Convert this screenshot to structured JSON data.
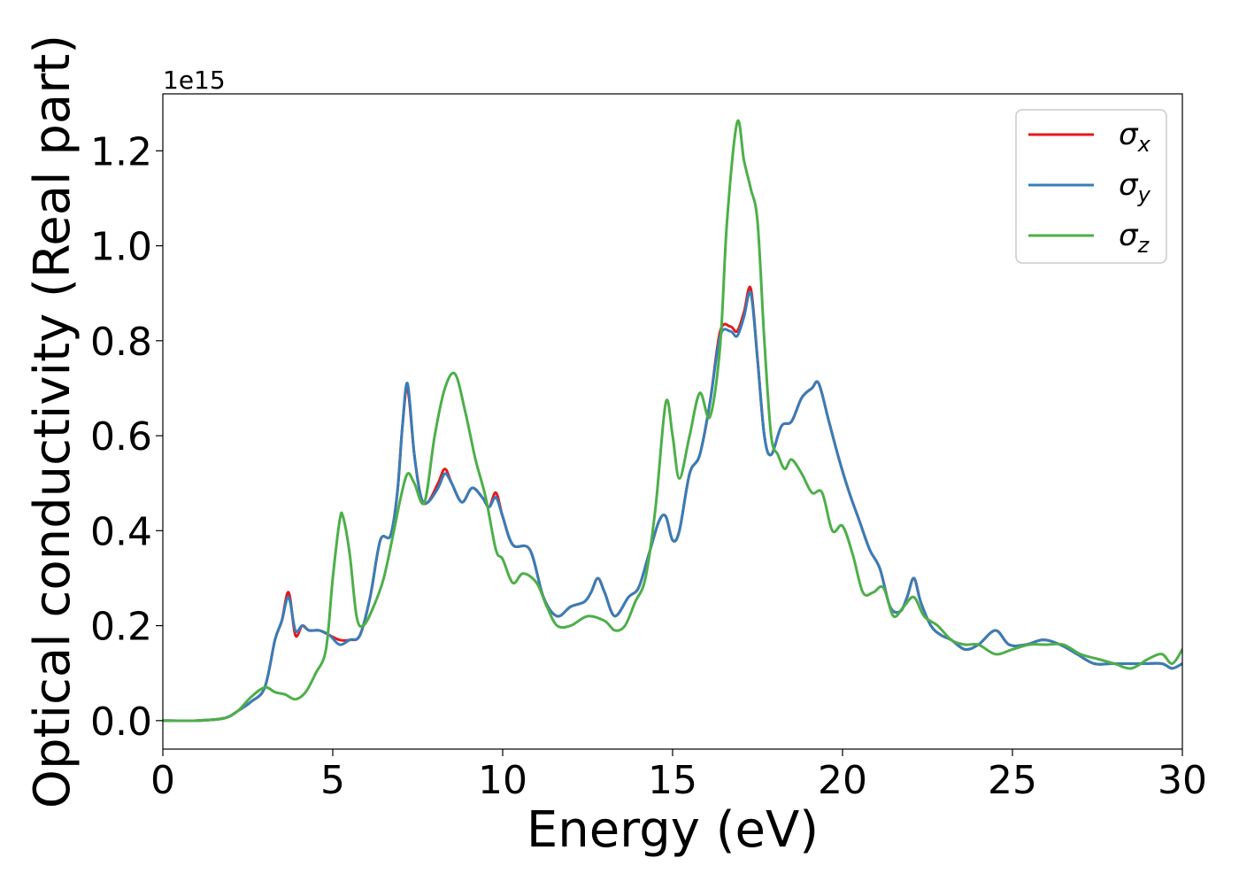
{
  "chart_data": {
    "type": "line",
    "title": "",
    "xlabel": "Energy (eV)",
    "ylabel": "Optical conductivity (Real part)",
    "y_offset_label": "1e15",
    "y_scale_factor": 1000000000000000.0,
    "xlim": [
      0,
      30
    ],
    "ylim": [
      -0.06,
      1.32
    ],
    "grid": false,
    "legend_position": "top-right",
    "x_ticks": [
      0,
      5,
      10,
      15,
      20,
      25,
      30
    ],
    "x_tick_labels": [
      "0",
      "5",
      "10",
      "15",
      "20",
      "25",
      "30"
    ],
    "y_ticks": [
      0.0,
      0.2,
      0.4,
      0.6,
      0.8,
      1.0,
      1.2
    ],
    "y_tick_labels": [
      "0.0",
      "0.2",
      "0.4",
      "0.6",
      "0.8",
      "1.0",
      "1.2"
    ],
    "series": [
      {
        "name": "σx",
        "legend_main": "σ",
        "legend_sub": "x",
        "color": "#e41a1c",
        "x": [
          0,
          1,
          1.8,
          2.2,
          2.6,
          3.0,
          3.3,
          3.5,
          3.7,
          3.9,
          4.1,
          4.3,
          4.6,
          4.9,
          5.2,
          5.5,
          5.8,
          6.1,
          6.4,
          6.7,
          6.9,
          7.05,
          7.2,
          7.4,
          7.6,
          7.8,
          8.1,
          8.3,
          8.5,
          8.8,
          9.1,
          9.4,
          9.6,
          9.8,
          10.0,
          10.3,
          10.8,
          11.2,
          11.6,
          12.0,
          12.4,
          12.6,
          12.8,
          13.0,
          13.3,
          13.7,
          14.0,
          14.3,
          14.6,
          14.8,
          15.0,
          15.2,
          15.5,
          15.8,
          16.1,
          16.4,
          16.7,
          16.9,
          17.1,
          17.3,
          17.5,
          17.7,
          17.9,
          18.2,
          18.5,
          18.8,
          19.1,
          19.3,
          19.6,
          19.9,
          20.2,
          20.5,
          20.8,
          21.1,
          21.4,
          21.7,
          21.9,
          22.1,
          22.3,
          22.6,
          22.9,
          23.2,
          23.6,
          24.0,
          24.5,
          24.9,
          25.4,
          25.9,
          26.4,
          26.9,
          27.4,
          27.9,
          28.4,
          28.9,
          29.4,
          29.7,
          30.0
        ],
        "y": [
          0.0,
          0.0,
          0.005,
          0.02,
          0.04,
          0.07,
          0.17,
          0.21,
          0.27,
          0.18,
          0.2,
          0.19,
          0.19,
          0.18,
          0.17,
          0.17,
          0.18,
          0.26,
          0.38,
          0.39,
          0.48,
          0.62,
          0.7,
          0.56,
          0.47,
          0.46,
          0.5,
          0.53,
          0.5,
          0.46,
          0.49,
          0.47,
          0.45,
          0.48,
          0.43,
          0.37,
          0.36,
          0.26,
          0.22,
          0.24,
          0.25,
          0.27,
          0.3,
          0.27,
          0.22,
          0.26,
          0.28,
          0.35,
          0.42,
          0.43,
          0.38,
          0.4,
          0.52,
          0.56,
          0.67,
          0.82,
          0.83,
          0.82,
          0.86,
          0.91,
          0.76,
          0.6,
          0.56,
          0.62,
          0.63,
          0.68,
          0.7,
          0.71,
          0.63,
          0.55,
          0.48,
          0.42,
          0.36,
          0.32,
          0.24,
          0.23,
          0.26,
          0.3,
          0.25,
          0.2,
          0.18,
          0.17,
          0.15,
          0.16,
          0.19,
          0.16,
          0.16,
          0.17,
          0.16,
          0.14,
          0.12,
          0.12,
          0.12,
          0.12,
          0.12,
          0.11,
          0.12
        ]
      },
      {
        "name": "σy",
        "legend_main": "σ",
        "legend_sub": "y",
        "color": "#377eb8",
        "x": [
          0,
          1,
          1.8,
          2.2,
          2.6,
          3.0,
          3.3,
          3.5,
          3.7,
          3.9,
          4.1,
          4.3,
          4.6,
          4.9,
          5.2,
          5.5,
          5.8,
          6.1,
          6.4,
          6.7,
          6.9,
          7.05,
          7.2,
          7.4,
          7.6,
          7.8,
          8.1,
          8.3,
          8.5,
          8.8,
          9.1,
          9.4,
          9.6,
          9.8,
          10.0,
          10.3,
          10.8,
          11.2,
          11.6,
          12.0,
          12.4,
          12.6,
          12.8,
          13.0,
          13.3,
          13.7,
          14.0,
          14.3,
          14.6,
          14.8,
          15.0,
          15.2,
          15.5,
          15.8,
          16.1,
          16.4,
          16.7,
          16.9,
          17.1,
          17.3,
          17.5,
          17.7,
          17.9,
          18.2,
          18.5,
          18.8,
          19.1,
          19.3,
          19.6,
          19.9,
          20.2,
          20.5,
          20.8,
          21.1,
          21.4,
          21.7,
          21.9,
          22.1,
          22.3,
          22.6,
          22.9,
          23.2,
          23.6,
          24.0,
          24.5,
          24.9,
          25.4,
          25.9,
          26.4,
          26.9,
          27.4,
          27.9,
          28.4,
          28.9,
          29.4,
          29.7,
          30.0
        ],
        "y": [
          0.0,
          0.0,
          0.005,
          0.02,
          0.04,
          0.07,
          0.17,
          0.21,
          0.26,
          0.19,
          0.2,
          0.19,
          0.19,
          0.18,
          0.16,
          0.17,
          0.18,
          0.26,
          0.38,
          0.39,
          0.48,
          0.62,
          0.71,
          0.56,
          0.47,
          0.46,
          0.49,
          0.52,
          0.5,
          0.46,
          0.49,
          0.47,
          0.45,
          0.47,
          0.43,
          0.37,
          0.36,
          0.26,
          0.22,
          0.24,
          0.25,
          0.27,
          0.3,
          0.27,
          0.22,
          0.26,
          0.28,
          0.35,
          0.42,
          0.43,
          0.38,
          0.4,
          0.52,
          0.56,
          0.67,
          0.81,
          0.82,
          0.81,
          0.85,
          0.9,
          0.76,
          0.6,
          0.56,
          0.62,
          0.63,
          0.68,
          0.7,
          0.71,
          0.63,
          0.55,
          0.48,
          0.42,
          0.36,
          0.32,
          0.24,
          0.23,
          0.26,
          0.3,
          0.25,
          0.2,
          0.18,
          0.17,
          0.15,
          0.16,
          0.19,
          0.16,
          0.16,
          0.17,
          0.16,
          0.14,
          0.12,
          0.12,
          0.12,
          0.12,
          0.12,
          0.11,
          0.12
        ]
      },
      {
        "name": "σz",
        "legend_main": "σ",
        "legend_sub": "z",
        "color": "#4daf4a",
        "x": [
          0,
          1,
          1.8,
          2.2,
          2.6,
          3.0,
          3.3,
          3.6,
          3.9,
          4.2,
          4.5,
          4.8,
          5.0,
          5.2,
          5.3,
          5.5,
          5.7,
          5.9,
          6.2,
          6.5,
          6.8,
          7.0,
          7.2,
          7.4,
          7.7,
          8.0,
          8.3,
          8.6,
          8.9,
          9.2,
          9.5,
          9.8,
          10.0,
          10.3,
          10.6,
          11.0,
          11.3,
          11.6,
          12.0,
          12.5,
          13.0,
          13.3,
          13.6,
          13.9,
          14.2,
          14.5,
          14.8,
          15.0,
          15.2,
          15.5,
          15.8,
          16.1,
          16.4,
          16.6,
          16.9,
          17.1,
          17.3,
          17.5,
          17.7,
          17.9,
          18.1,
          18.3,
          18.5,
          18.8,
          19.1,
          19.4,
          19.7,
          20.0,
          20.3,
          20.6,
          20.9,
          21.2,
          21.5,
          21.8,
          22.1,
          22.4,
          22.8,
          23.2,
          23.6,
          24.0,
          24.5,
          25.0,
          25.5,
          26.0,
          26.5,
          27.0,
          27.5,
          28.0,
          28.5,
          29.0,
          29.4,
          29.7,
          30.0
        ],
        "y": [
          0.0,
          0.0,
          0.005,
          0.02,
          0.05,
          0.07,
          0.06,
          0.055,
          0.045,
          0.06,
          0.1,
          0.15,
          0.3,
          0.42,
          0.43,
          0.35,
          0.22,
          0.2,
          0.24,
          0.3,
          0.4,
          0.47,
          0.52,
          0.5,
          0.46,
          0.6,
          0.7,
          0.73,
          0.65,
          0.55,
          0.47,
          0.36,
          0.34,
          0.29,
          0.31,
          0.29,
          0.24,
          0.2,
          0.2,
          0.22,
          0.21,
          0.19,
          0.2,
          0.25,
          0.3,
          0.45,
          0.67,
          0.6,
          0.51,
          0.6,
          0.69,
          0.64,
          0.79,
          1.05,
          1.26,
          1.18,
          1.12,
          1.05,
          0.8,
          0.6,
          0.56,
          0.53,
          0.55,
          0.52,
          0.48,
          0.48,
          0.4,
          0.41,
          0.35,
          0.27,
          0.27,
          0.28,
          0.22,
          0.24,
          0.26,
          0.22,
          0.2,
          0.17,
          0.16,
          0.16,
          0.14,
          0.15,
          0.16,
          0.16,
          0.16,
          0.14,
          0.13,
          0.12,
          0.11,
          0.13,
          0.14,
          0.12,
          0.15
        ]
      }
    ]
  }
}
